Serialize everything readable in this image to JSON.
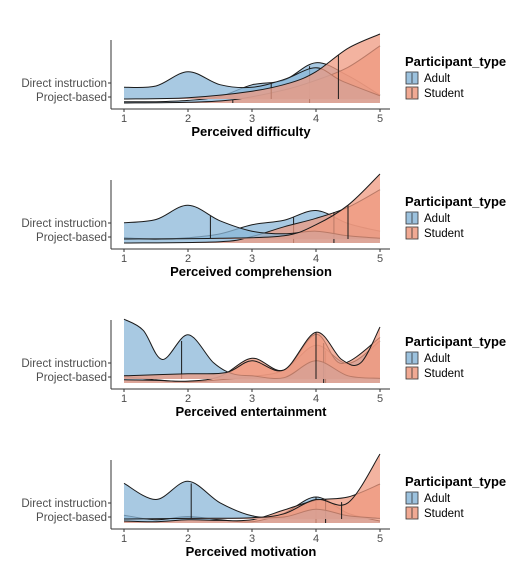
{
  "colors": {
    "adult": "#8bb7d8",
    "student": "#ef9a80",
    "outline": "#1a1a1a"
  },
  "chart_data": [
    {
      "type": "ridgeline",
      "xlabel": "Perceived difficulty",
      "categories": [
        "Direct instruction",
        "Project-based"
      ],
      "xticks": [
        1,
        2,
        3,
        4,
        5
      ],
      "xlim": [
        1,
        5
      ],
      "legend": {
        "title": "Participant_type",
        "entries": [
          "Adult",
          "Student"
        ],
        "position": "right"
      },
      "series": [
        {
          "name": "Adult",
          "category": "Direct instruction",
          "density": [
            [
              1.0,
              0.18
            ],
            [
              1.5,
              0.2
            ],
            [
              2.0,
              0.42
            ],
            [
              2.5,
              0.22
            ],
            [
              3.0,
              0.18
            ],
            [
              3.5,
              0.3
            ],
            [
              4.0,
              0.48
            ],
            [
              4.4,
              0.28
            ],
            [
              5.0,
              0.05
            ]
          ],
          "mean": 3.3
        },
        {
          "name": "Student",
          "category": "Direct instruction",
          "density": [
            [
              1.0,
              0.0
            ],
            [
              2.0,
              0.02
            ],
            [
              3.0,
              0.12
            ],
            [
              3.6,
              0.25
            ],
            [
              4.0,
              0.42
            ],
            [
              4.5,
              0.78
            ],
            [
              5.0,
              1.0
            ]
          ],
          "mean": 4.35
        },
        {
          "name": "Adult",
          "category": "Project-based",
          "density": [
            [
              1.0,
              0.02
            ],
            [
              1.5,
              0.02
            ],
            [
              2.0,
              0.04
            ],
            [
              2.5,
              0.1
            ],
            [
              3.0,
              0.28
            ],
            [
              3.5,
              0.35
            ],
            [
              4.0,
              0.62
            ],
            [
              4.5,
              0.42
            ],
            [
              5.0,
              0.12
            ]
          ],
          "mean": 3.9
        },
        {
          "name": "Student",
          "category": "Project-based",
          "density": [
            [
              1.0,
              0.0
            ],
            [
              2.0,
              0.01
            ],
            [
              2.7,
              0.05
            ],
            [
              3.5,
              0.2
            ],
            [
              4.0,
              0.35
            ],
            [
              4.5,
              0.55
            ],
            [
              5.0,
              0.88
            ]
          ],
          "mean": 2.7
        }
      ]
    },
    {
      "type": "ridgeline",
      "xlabel": "Perceived comprehension",
      "categories": [
        "Direct instruction",
        "Project-based"
      ],
      "xticks": [
        1,
        2,
        3,
        4,
        5
      ],
      "xlim": [
        1,
        5
      ],
      "legend": {
        "title": "Participant_type",
        "entries": [
          "Adult",
          "Student"
        ],
        "position": "right"
      },
      "series": [
        {
          "name": "Adult",
          "category": "Direct instruction",
          "density": [
            [
              1.0,
              0.25
            ],
            [
              1.5,
              0.3
            ],
            [
              2.0,
              0.52
            ],
            [
              2.5,
              0.28
            ],
            [
              3.0,
              0.12
            ],
            [
              3.5,
              0.08
            ],
            [
              4.0,
              0.12
            ],
            [
              4.5,
              0.05
            ],
            [
              5.0,
              0.01
            ]
          ],
          "mean": 2.35
        },
        {
          "name": "Student",
          "category": "Direct instruction",
          "density": [
            [
              1.0,
              0.0
            ],
            [
              2.5,
              0.01
            ],
            [
              3.5,
              0.05
            ],
            [
              4.0,
              0.22
            ],
            [
              4.5,
              0.52
            ],
            [
              5.0,
              1.0
            ]
          ],
          "mean": 4.5
        },
        {
          "name": "Adult",
          "category": "Project-based",
          "density": [
            [
              1.0,
              0.08
            ],
            [
              1.5,
              0.06
            ],
            [
              2.0,
              0.08
            ],
            [
              2.5,
              0.14
            ],
            [
              3.0,
              0.28
            ],
            [
              3.5,
              0.35
            ],
            [
              4.0,
              0.5
            ],
            [
              4.5,
              0.3
            ],
            [
              5.0,
              0.18
            ]
          ],
          "mean": 3.65
        },
        {
          "name": "Student",
          "category": "Project-based",
          "density": [
            [
              1.0,
              0.0
            ],
            [
              2.5,
              0.02
            ],
            [
              3.0,
              0.1
            ],
            [
              3.5,
              0.25
            ],
            [
              4.0,
              0.38
            ],
            [
              4.5,
              0.55
            ],
            [
              5.0,
              0.82
            ]
          ],
          "mean": 4.28
        }
      ]
    },
    {
      "type": "ridgeline",
      "xlabel": "Perceived entertainment",
      "categories": [
        "Direct instruction",
        "Project-based"
      ],
      "xticks": [
        1,
        2,
        3,
        4,
        5
      ],
      "xlim": [
        1,
        5
      ],
      "legend": {
        "title": "Participant_type",
        "entries": [
          "Adult",
          "Student"
        ],
        "position": "right"
      },
      "series": [
        {
          "name": "Adult",
          "category": "Direct instruction",
          "density": [
            [
              1.0,
              0.92
            ],
            [
              1.3,
              0.75
            ],
            [
              1.6,
              0.3
            ],
            [
              2.0,
              0.68
            ],
            [
              2.4,
              0.25
            ],
            [
              2.7,
              0.08
            ],
            [
              3.0,
              0.05
            ],
            [
              3.5,
              0.02
            ],
            [
              4.0,
              0.28
            ],
            [
              4.5,
              0.05
            ],
            [
              5.0,
              0.01
            ]
          ],
          "mean": 1.9
        },
        {
          "name": "Student",
          "category": "Direct instruction",
          "density": [
            [
              1.0,
              0.05
            ],
            [
              2.0,
              0.08
            ],
            [
              2.6,
              0.1
            ],
            [
              3.0,
              0.28
            ],
            [
              3.5,
              0.14
            ],
            [
              4.0,
              0.72
            ],
            [
              4.4,
              0.3
            ],
            [
              4.7,
              0.25
            ],
            [
              5.0,
              0.8
            ]
          ],
          "mean": 4.0
        },
        {
          "name": "Adult",
          "category": "Project-based",
          "density": [
            [
              1.0,
              0.1
            ],
            [
              1.5,
              0.05
            ],
            [
              2.0,
              0.02
            ],
            [
              2.5,
              0.05
            ],
            [
              3.0,
              0.1
            ],
            [
              3.5,
              0.2
            ],
            [
              4.0,
              0.58
            ],
            [
              4.5,
              0.3
            ],
            [
              5.0,
              0.65
            ]
          ],
          "mean": 4.15
        },
        {
          "name": "Student",
          "category": "Project-based",
          "density": [
            [
              1.0,
              0.05
            ],
            [
              1.5,
              0.04
            ],
            [
              2.0,
              0.03
            ],
            [
              2.5,
              0.1
            ],
            [
              3.0,
              0.38
            ],
            [
              3.5,
              0.2
            ],
            [
              4.0,
              0.75
            ],
            [
              4.4,
              0.3
            ],
            [
              5.0,
              0.7
            ]
          ],
          "mean": 4.12
        }
      ]
    },
    {
      "type": "ridgeline",
      "xlabel": "Perceived motivation",
      "categories": [
        "Direct instruction",
        "Project-based"
      ],
      "xticks": [
        1,
        2,
        3,
        4,
        5
      ],
      "xlim": [
        1,
        5
      ],
      "legend": {
        "title": "Participant_type",
        "entries": [
          "Adult",
          "Student"
        ],
        "position": "right"
      },
      "series": [
        {
          "name": "Adult",
          "category": "Direct instruction",
          "density": [
            [
              1.0,
              0.55
            ],
            [
              1.5,
              0.3
            ],
            [
              2.0,
              0.58
            ],
            [
              2.5,
              0.25
            ],
            [
              3.0,
              0.05
            ],
            [
              3.5,
              0.03
            ],
            [
              4.0,
              0.15
            ],
            [
              4.5,
              0.05
            ],
            [
              5.0,
              0.01
            ]
          ],
          "mean": 2.05
        },
        {
          "name": "Student",
          "category": "Direct instruction",
          "density": [
            [
              1.0,
              0.0
            ],
            [
              2.0,
              0.01
            ],
            [
              3.0,
              0.02
            ],
            [
              3.5,
              0.08
            ],
            [
              4.0,
              0.3
            ],
            [
              4.5,
              0.25
            ],
            [
              5.0,
              1.0
            ]
          ],
          "mean": 4.4
        },
        {
          "name": "Adult",
          "category": "Project-based",
          "density": [
            [
              1.0,
              0.12
            ],
            [
              1.5,
              0.05
            ],
            [
              2.0,
              0.1
            ],
            [
              2.5,
              0.05
            ],
            [
              3.0,
              0.02
            ],
            [
              3.5,
              0.15
            ],
            [
              4.0,
              0.4
            ],
            [
              4.5,
              0.15
            ],
            [
              5.0,
              0.03
            ]
          ],
          "mean": 4.0
        },
        {
          "name": "Student",
          "category": "Project-based",
          "density": [
            [
              1.0,
              0.03
            ],
            [
              1.5,
              0.02
            ],
            [
              2.0,
              0.05
            ],
            [
              2.5,
              0.04
            ],
            [
              3.0,
              0.05
            ],
            [
              3.5,
              0.2
            ],
            [
              4.0,
              0.35
            ],
            [
              4.5,
              0.4
            ],
            [
              5.0,
              0.6
            ]
          ],
          "mean": 4.15
        }
      ]
    }
  ]
}
